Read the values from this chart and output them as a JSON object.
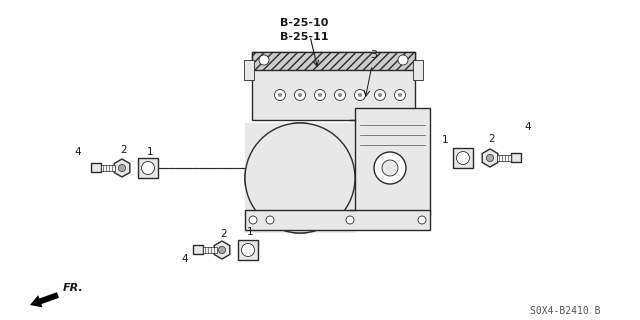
{
  "bg_color": "#ffffff",
  "line_color": "#2a2a2a",
  "text_color": "#1a1a1a",
  "diagram_code": "S0X4-B2410 B",
  "b_labels": [
    "B-25-10",
    "B-25-11"
  ],
  "part_label_3": "3",
  "fr_text": "FR.",
  "lw_main": 1.0,
  "lw_thin": 0.6,
  "lw_thick": 1.4
}
